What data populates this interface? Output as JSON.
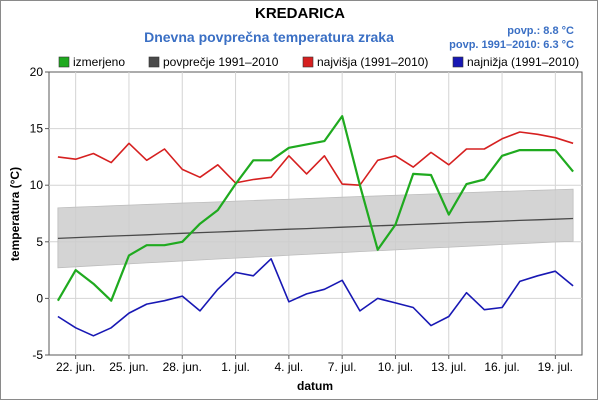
{
  "chart_data": {
    "type": "line",
    "title": "KREDARICA",
    "subtitle": "Dnevna povprečna temperatura zraka",
    "info": [
      "povp.: 8.8 °C",
      "povp. 1991–2010: 6.3 °C"
    ],
    "xlabel": "datum",
    "ylabel": "temperatura (°C)",
    "ylim": [
      -5,
      20
    ],
    "yticks": [
      -5,
      0,
      5,
      10,
      15,
      20
    ],
    "xlim": [
      20.5,
      50.5
    ],
    "xticks": [
      22,
      25,
      28,
      31,
      34,
      37,
      40,
      43,
      46,
      49
    ],
    "xtick_labels": [
      "22. jun.",
      "25. jun.",
      "28. jun.",
      "1. jul.",
      "4. jul.",
      "7. jul.",
      "10. jul.",
      "13. jul.",
      "16. jul.",
      "19. jul."
    ],
    "grid": true,
    "legend_position": "top",
    "x": [
      21,
      22,
      23,
      24,
      25,
      26,
      27,
      28,
      29,
      30,
      31,
      32,
      33,
      34,
      35,
      36,
      37,
      38,
      39,
      40,
      41,
      42,
      43,
      44,
      45,
      46,
      47,
      48,
      49,
      50
    ],
    "series": [
      {
        "name": "izmerjeno",
        "color": "#1faa1f",
        "kind": "line",
        "values": [
          -0.2,
          2.5,
          1.3,
          -0.2,
          3.8,
          4.7,
          4.7,
          5.0,
          6.6,
          7.8,
          10.1,
          12.2,
          12.2,
          13.3,
          13.6,
          13.9,
          16.1,
          10.0,
          4.3,
          6.5,
          11.0,
          10.9,
          7.4,
          10.1,
          10.5,
          12.6,
          13.1,
          13.1,
          13.1,
          11.2
        ]
      },
      {
        "name": "povprečje 1991–2010",
        "color": "#4a4a4a",
        "kind": "line",
        "values": [
          5.3,
          5.37,
          5.43,
          5.5,
          5.56,
          5.62,
          5.69,
          5.75,
          5.81,
          5.87,
          5.93,
          5.99,
          6.05,
          6.11,
          6.17,
          6.23,
          6.29,
          6.35,
          6.41,
          6.47,
          6.53,
          6.59,
          6.65,
          6.71,
          6.77,
          6.83,
          6.89,
          6.94,
          7.0,
          7.06
        ],
        "band_upper": [
          8.0,
          8.06,
          8.12,
          8.18,
          8.24,
          8.3,
          8.36,
          8.42,
          8.47,
          8.53,
          8.59,
          8.65,
          8.71,
          8.76,
          8.82,
          8.88,
          8.94,
          9.0,
          9.05,
          9.11,
          9.17,
          9.22,
          9.28,
          9.34,
          9.4,
          9.45,
          9.5,
          9.55,
          9.6,
          9.65
        ],
        "band_lower": [
          2.7,
          2.79,
          2.88,
          2.96,
          3.05,
          3.14,
          3.22,
          3.31,
          3.39,
          3.48,
          3.56,
          3.64,
          3.72,
          3.81,
          3.89,
          3.97,
          4.05,
          4.13,
          4.21,
          4.29,
          4.37,
          4.45,
          4.52,
          4.6,
          4.68,
          4.76,
          4.83,
          4.91,
          4.98,
          5.05
        ]
      },
      {
        "name": "najvišja (1991–2010)",
        "color": "#d62020",
        "kind": "line",
        "values": [
          12.5,
          12.3,
          12.8,
          12.0,
          13.7,
          12.2,
          13.2,
          11.4,
          10.7,
          11.8,
          10.2,
          10.5,
          10.7,
          12.6,
          11.0,
          12.6,
          10.1,
          10.0,
          12.2,
          12.6,
          11.6,
          12.9,
          11.8,
          13.2,
          13.2,
          14.1,
          14.7,
          14.5,
          14.2,
          13.7
        ]
      },
      {
        "name": "najnižja (1991–2010)",
        "color": "#1818b4",
        "kind": "line",
        "values": [
          -1.6,
          -2.6,
          -3.3,
          -2.6,
          -1.3,
          -0.5,
          -0.2,
          0.2,
          -1.1,
          0.8,
          2.3,
          2.0,
          3.5,
          -0.3,
          0.4,
          0.8,
          1.6,
          -1.1,
          0.0,
          -0.4,
          -0.8,
          -2.4,
          -1.6,
          0.5,
          -1.0,
          -0.8,
          1.5,
          2.0,
          2.4,
          1.1
        ]
      }
    ]
  }
}
